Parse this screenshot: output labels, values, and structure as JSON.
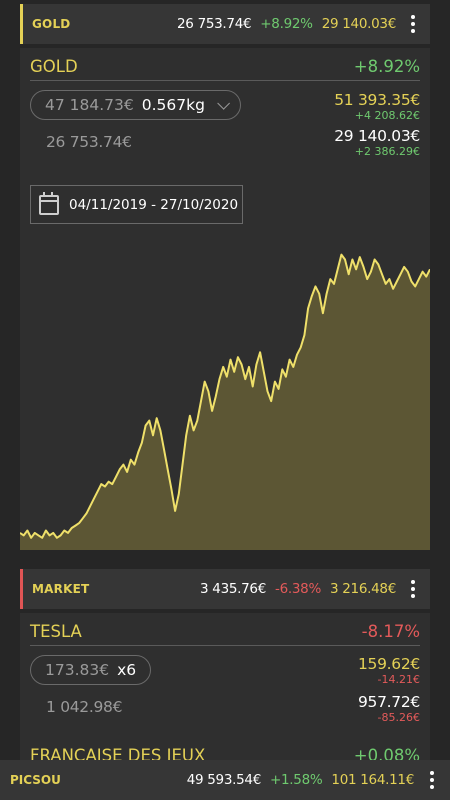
{
  "colors": {
    "gold": "#e4d156",
    "green": "#6fca6f",
    "red": "#e35a5a",
    "market_accent": "#e05555"
  },
  "gold_header": {
    "name": "GOLD",
    "value": "26 753.74€",
    "change": "+8.92%",
    "total": "29 140.03€",
    "menu_icon": "more-vert-icon"
  },
  "gold_panel": {
    "title": "GOLD",
    "change": "+8.92%",
    "purchase_value": "47 184.73€",
    "quantity": "0.567kg",
    "market_value": "51 393.35€",
    "market_delta": "+4 208.62€",
    "cost": "26 753.74€",
    "current_value": "29 140.03€",
    "current_delta": "+2 386.29€",
    "date_range": "04/11/2019 - 27/10/2020",
    "date_icon": "calendar-icon"
  },
  "chart_data": {
    "type": "area",
    "x_start": "04/11/2019",
    "x_end": "27/10/2020",
    "values": [
      27.2,
      27.1,
      27.3,
      27.0,
      27.2,
      27.1,
      27.0,
      27.3,
      27.1,
      27.2,
      27.0,
      27.1,
      27.3,
      27.2,
      27.4,
      27.5,
      27.6,
      27.8,
      28.0,
      28.3,
      28.6,
      28.9,
      29.2,
      29.1,
      29.3,
      29.2,
      29.5,
      29.8,
      30.0,
      29.7,
      30.2,
      30.0,
      30.5,
      30.9,
      31.6,
      31.8,
      31.2,
      31.9,
      31.4,
      30.6,
      29.8,
      29.0,
      28.1,
      28.8,
      30.0,
      31.2,
      32.0,
      31.4,
      31.8,
      32.6,
      33.4,
      33.0,
      32.2,
      32.8,
      33.5,
      34.0,
      33.6,
      34.3,
      33.8,
      34.4,
      34.1,
      33.5,
      34.0,
      33.2,
      34.1,
      34.6,
      33.8,
      33.0,
      32.6,
      33.4,
      33.1,
      33.9,
      33.6,
      34.3,
      34.0,
      34.5,
      34.8,
      35.3,
      36.4,
      36.9,
      37.3,
      37.0,
      36.2,
      37.0,
      37.6,
      37.4,
      38.0,
      38.6,
      38.4,
      37.8,
      38.4,
      38.0,
      38.5,
      38.1,
      37.6,
      37.9,
      38.4,
      38.2,
      37.8,
      37.4,
      37.6,
      37.2,
      37.5,
      37.8,
      38.1,
      37.9,
      37.5,
      37.3,
      37.6,
      37.9,
      37.7,
      38.0
    ]
  },
  "market_header": {
    "name": "MARKET",
    "value": "3 435.76€",
    "change": "-6.38%",
    "total": "3 216.48€",
    "menu_icon": "more-vert-icon"
  },
  "tesla": {
    "title": "TESLA",
    "change": "-8.17%",
    "unit_price": "173.83€",
    "quantity": "x6",
    "market_value": "159.62€",
    "market_delta": "-14.21€",
    "cost": "1 042.98€",
    "current_value": "957.72€",
    "current_delta": "-85.26€"
  },
  "next_item": {
    "title": "FRANCAISE DES JEUX",
    "change": "+0.08%"
  },
  "footer": {
    "name": "PICSOU",
    "value": "49 593.54€",
    "change": "+1.58%",
    "total": "101 164.11€",
    "menu_icon": "more-vert-icon"
  }
}
